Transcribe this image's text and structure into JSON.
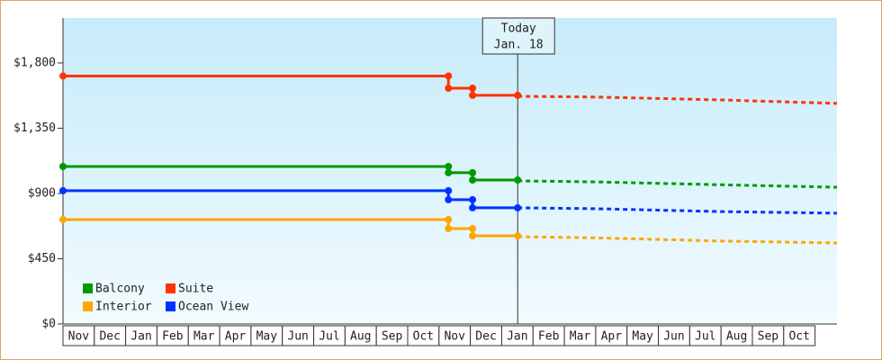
{
  "chart_data": {
    "type": "line",
    "ylim": [
      0,
      2110
    ],
    "yticks": [
      {
        "value": 0,
        "label": "$0"
      },
      {
        "value": 450,
        "label": "$450"
      },
      {
        "value": 900,
        "label": "$900"
      },
      {
        "value": 1350,
        "label": "$1,350"
      },
      {
        "value": 1800,
        "label": "$1,800"
      }
    ],
    "xlim": [
      0,
      24.7
    ],
    "xticks": [
      {
        "value": 0,
        "label": "Nov"
      },
      {
        "value": 1,
        "label": "Dec"
      },
      {
        "value": 2,
        "label": "Jan"
      },
      {
        "value": 3,
        "label": "Feb"
      },
      {
        "value": 4,
        "label": "Mar"
      },
      {
        "value": 5,
        "label": "Apr"
      },
      {
        "value": 6,
        "label": "May"
      },
      {
        "value": 7,
        "label": "Jun"
      },
      {
        "value": 8,
        "label": "Jul"
      },
      {
        "value": 9,
        "label": "Aug"
      },
      {
        "value": 10,
        "label": "Sep"
      },
      {
        "value": 11,
        "label": "Oct"
      },
      {
        "value": 12,
        "label": "Nov"
      },
      {
        "value": 13,
        "label": "Dec"
      },
      {
        "value": 14,
        "label": "Jan"
      },
      {
        "value": 15,
        "label": "Feb"
      },
      {
        "value": 16,
        "label": "Mar"
      },
      {
        "value": 17,
        "label": "Apr"
      },
      {
        "value": 18,
        "label": "May"
      },
      {
        "value": 19,
        "label": "Jun"
      },
      {
        "value": 20,
        "label": "Jul"
      },
      {
        "value": 21,
        "label": "Aug"
      },
      {
        "value": 22,
        "label": "Sep"
      },
      {
        "value": 23,
        "label": "Oct"
      }
    ],
    "grid": false,
    "legend": "lower left",
    "today": {
      "x": 14.51,
      "label": [
        "Today",
        "Jan. 18"
      ]
    },
    "series": [
      {
        "name": "Balcony",
        "color": "#009900",
        "x": [
          0,
          12.3,
          12.3,
          13.07,
          13.07,
          14.51
        ],
        "values": [
          1086,
          1086,
          1043,
          1043,
          993,
          993
        ],
        "forecast": {
          "x": [
            14.51,
            17,
            19,
            21,
            24.7
          ],
          "values": [
            987,
            980,
            970,
            960,
            943
          ]
        }
      },
      {
        "name": "Suite",
        "color": "#ff3300",
        "x": [
          0,
          12.3,
          12.3,
          13.07,
          13.07,
          14.51
        ],
        "values": [
          1710,
          1710,
          1626,
          1626,
          1577,
          1577
        ],
        "forecast": {
          "x": [
            14.51,
            17,
            19,
            21,
            24.7
          ],
          "values": [
            1570,
            1565,
            1555,
            1545,
            1521
          ]
        }
      },
      {
        "name": "Interior",
        "color": "#ffa500",
        "x": [
          0,
          12.3,
          12.3,
          13.07,
          13.07,
          14.51
        ],
        "values": [
          720,
          720,
          658,
          658,
          608,
          608
        ],
        "forecast": {
          "x": [
            14.51,
            17,
            19,
            21,
            24.7
          ],
          "values": [
            602,
            594,
            583,
            572,
            559
          ]
        }
      },
      {
        "name": "Ocean View",
        "color": "#0033ff",
        "x": [
          0,
          12.3,
          12.3,
          13.07,
          13.07,
          14.51
        ],
        "values": [
          919,
          919,
          857,
          857,
          801,
          801
        ],
        "forecast": {
          "x": [
            14.51,
            17,
            19,
            21,
            24.7
          ],
          "values": [
            801,
            795,
            785,
            775,
            764
          ]
        }
      }
    ]
  }
}
